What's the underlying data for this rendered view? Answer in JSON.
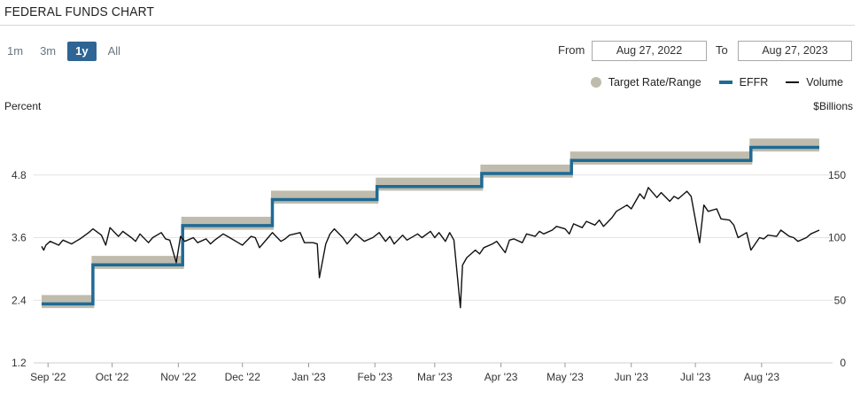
{
  "header": {
    "title": "FEDERAL FUNDS CHART"
  },
  "range_buttons": [
    {
      "label": "1m",
      "active": false
    },
    {
      "label": "3m",
      "active": false
    },
    {
      "label": "1y",
      "active": true
    },
    {
      "label": "All",
      "active": false
    }
  ],
  "date_range": {
    "from_label": "From",
    "from_value": "Aug 27, 2022",
    "to_label": "To",
    "to_value": "Aug 27, 2023"
  },
  "legend": {
    "target": "Target Rate/Range",
    "effr": "EFFR",
    "volume": "Volume",
    "colors": {
      "target": "#bfbcae",
      "effr": "#1f6a95",
      "volume": "#111111"
    }
  },
  "chart_data": {
    "type": "line",
    "title": "FEDERAL FUNDS CHART",
    "y_left_label": "Percent",
    "y_right_label": "$Billions",
    "y_left_ticks": [
      "4.8",
      "3.6",
      "2.4",
      "1.2"
    ],
    "y_left_range": [
      1.2,
      6.0
    ],
    "y_right_ticks": [
      "150",
      "100",
      "50",
      "0"
    ],
    "y_right_range": [
      0,
      200
    ],
    "x_start": "2022-08-29",
    "x_end": "2023-08-28",
    "x_ticks": [
      {
        "label": "Sep '22",
        "date": "2022-09-01"
      },
      {
        "label": "Oct '22",
        "date": "2022-10-01"
      },
      {
        "label": "Nov '22",
        "date": "2022-11-01"
      },
      {
        "label": "Dec '22",
        "date": "2022-12-01"
      },
      {
        "label": "Jan '23",
        "date": "2023-01-01"
      },
      {
        "label": "Feb '23",
        "date": "2023-02-01"
      },
      {
        "label": "Mar '23",
        "date": "2023-03-01"
      },
      {
        "label": "Apr '23",
        "date": "2023-04-01"
      },
      {
        "label": "May '23",
        "date": "2023-05-01"
      },
      {
        "label": "Jun '23",
        "date": "2023-06-01"
      },
      {
        "label": "Jul '23",
        "date": "2023-07-01"
      },
      {
        "label": "Aug '23",
        "date": "2023-08-01"
      }
    ],
    "grid": "horizontal",
    "legend_position": "top-right",
    "series": [
      {
        "name": "Target Rate/Range",
        "kind": "range",
        "points": [
          {
            "from": "2022-08-29",
            "low": 2.25,
            "high": 2.5
          },
          {
            "from": "2022-09-22",
            "low": 3.0,
            "high": 3.25
          },
          {
            "from": "2022-11-03",
            "low": 3.75,
            "high": 4.0
          },
          {
            "from": "2022-12-15",
            "low": 4.25,
            "high": 4.5
          },
          {
            "from": "2023-02-02",
            "low": 4.5,
            "high": 4.75
          },
          {
            "from": "2023-03-23",
            "low": 4.75,
            "high": 5.0
          },
          {
            "from": "2023-05-04",
            "low": 5.0,
            "high": 5.25
          },
          {
            "from": "2023-07-27",
            "low": 5.25,
            "high": 5.5
          }
        ]
      },
      {
        "name": "EFFR",
        "kind": "step",
        "points": [
          {
            "from": "2022-08-29",
            "value": 2.33
          },
          {
            "from": "2022-09-22",
            "value": 3.08
          },
          {
            "from": "2022-11-03",
            "value": 3.83
          },
          {
            "from": "2022-12-15",
            "value": 4.33
          },
          {
            "from": "2023-02-02",
            "value": 4.58
          },
          {
            "from": "2023-03-23",
            "value": 4.83
          },
          {
            "from": "2023-05-04",
            "value": 5.08
          },
          {
            "from": "2023-07-27",
            "value": 5.33
          }
        ]
      },
      {
        "name": "Volume",
        "kind": "line",
        "axis": "right",
        "points": [
          [
            "2022-08-29",
            93
          ],
          [
            "2022-08-30",
            90
          ],
          [
            "2022-08-31",
            94
          ],
          [
            "2022-09-02",
            97
          ],
          [
            "2022-09-06",
            94
          ],
          [
            "2022-09-08",
            98
          ],
          [
            "2022-09-12",
            95
          ],
          [
            "2022-09-14",
            97
          ],
          [
            "2022-09-16",
            99
          ],
          [
            "2022-09-20",
            104
          ],
          [
            "2022-09-22",
            107
          ],
          [
            "2022-09-26",
            102
          ],
          [
            "2022-09-28",
            94
          ],
          [
            "2022-09-30",
            108
          ],
          [
            "2022-10-04",
            101
          ],
          [
            "2022-10-06",
            105
          ],
          [
            "2022-10-10",
            100
          ],
          [
            "2022-10-12",
            97
          ],
          [
            "2022-10-14",
            103
          ],
          [
            "2022-10-18",
            96
          ],
          [
            "2022-10-20",
            100
          ],
          [
            "2022-10-24",
            104
          ],
          [
            "2022-10-26",
            99
          ],
          [
            "2022-10-28",
            98
          ],
          [
            "2022-10-31",
            80
          ],
          [
            "2022-11-02",
            101
          ],
          [
            "2022-11-04",
            97
          ],
          [
            "2022-11-08",
            100
          ],
          [
            "2022-11-10",
            96
          ],
          [
            "2022-11-14",
            99
          ],
          [
            "2022-11-16",
            95
          ],
          [
            "2022-11-18",
            98
          ],
          [
            "2022-11-22",
            103
          ],
          [
            "2022-11-25",
            100
          ],
          [
            "2022-11-29",
            96
          ],
          [
            "2022-12-01",
            94
          ],
          [
            "2022-12-05",
            101
          ],
          [
            "2022-12-07",
            100
          ],
          [
            "2022-12-09",
            92
          ],
          [
            "2022-12-13",
            100
          ],
          [
            "2022-12-15",
            104
          ],
          [
            "2022-12-19",
            97
          ],
          [
            "2022-12-21",
            99
          ],
          [
            "2022-12-23",
            102
          ],
          [
            "2022-12-28",
            104
          ],
          [
            "2022-12-30",
            96
          ],
          [
            "2023-01-03",
            96
          ],
          [
            "2023-01-05",
            95
          ],
          [
            "2023-01-06",
            68
          ],
          [
            "2023-01-09",
            95
          ],
          [
            "2023-01-11",
            103
          ],
          [
            "2023-01-13",
            107
          ],
          [
            "2023-01-17",
            100
          ],
          [
            "2023-01-19",
            95
          ],
          [
            "2023-01-23",
            103
          ],
          [
            "2023-01-25",
            100
          ],
          [
            "2023-01-27",
            97
          ],
          [
            "2023-01-31",
            100
          ],
          [
            "2023-02-03",
            104
          ],
          [
            "2023-02-06",
            97
          ],
          [
            "2023-02-08",
            101
          ],
          [
            "2023-02-10",
            95
          ],
          [
            "2023-02-14",
            102
          ],
          [
            "2023-02-16",
            98
          ],
          [
            "2023-02-21",
            103
          ],
          [
            "2023-02-23",
            100
          ],
          [
            "2023-02-27",
            105
          ],
          [
            "2023-03-01",
            100
          ],
          [
            "2023-03-03",
            104
          ],
          [
            "2023-03-06",
            97
          ],
          [
            "2023-03-08",
            104
          ],
          [
            "2023-03-10",
            98
          ],
          [
            "2023-03-13",
            44
          ],
          [
            "2023-03-14",
            78
          ],
          [
            "2023-03-16",
            84
          ],
          [
            "2023-03-20",
            90
          ],
          [
            "2023-03-22",
            87
          ],
          [
            "2023-03-24",
            92
          ],
          [
            "2023-03-28",
            95
          ],
          [
            "2023-03-30",
            97
          ],
          [
            "2023-04-03",
            88
          ],
          [
            "2023-04-05",
            98
          ],
          [
            "2023-04-07",
            99
          ],
          [
            "2023-04-11",
            96
          ],
          [
            "2023-04-13",
            103
          ],
          [
            "2023-04-17",
            101
          ],
          [
            "2023-04-19",
            105
          ],
          [
            "2023-04-21",
            103
          ],
          [
            "2023-04-25",
            106
          ],
          [
            "2023-04-27",
            109
          ],
          [
            "2023-05-01",
            107
          ],
          [
            "2023-05-03",
            103
          ],
          [
            "2023-05-05",
            111
          ],
          [
            "2023-05-09",
            108
          ],
          [
            "2023-05-11",
            113
          ],
          [
            "2023-05-15",
            110
          ],
          [
            "2023-05-17",
            114
          ],
          [
            "2023-05-19",
            109
          ],
          [
            "2023-05-23",
            116
          ],
          [
            "2023-05-25",
            121
          ],
          [
            "2023-05-30",
            126
          ],
          [
            "2023-06-01",
            123
          ],
          [
            "2023-06-05",
            135
          ],
          [
            "2023-06-07",
            131
          ],
          [
            "2023-06-09",
            140
          ],
          [
            "2023-06-13",
            132
          ],
          [
            "2023-06-15",
            136
          ],
          [
            "2023-06-19",
            129
          ],
          [
            "2023-06-21",
            133
          ],
          [
            "2023-06-23",
            131
          ],
          [
            "2023-06-27",
            137
          ],
          [
            "2023-06-29",
            133
          ],
          [
            "2023-07-03",
            96
          ],
          [
            "2023-07-05",
            126
          ],
          [
            "2023-07-07",
            121
          ],
          [
            "2023-07-11",
            123
          ],
          [
            "2023-07-13",
            115
          ],
          [
            "2023-07-17",
            114
          ],
          [
            "2023-07-19",
            110
          ],
          [
            "2023-07-21",
            100
          ],
          [
            "2023-07-25",
            104
          ],
          [
            "2023-07-27",
            90
          ],
          [
            "2023-07-31",
            100
          ],
          [
            "2023-08-02",
            99
          ],
          [
            "2023-08-04",
            102
          ],
          [
            "2023-08-08",
            101
          ],
          [
            "2023-08-10",
            106
          ],
          [
            "2023-08-14",
            101
          ],
          [
            "2023-08-16",
            100
          ],
          [
            "2023-08-18",
            97
          ],
          [
            "2023-08-22",
            100
          ],
          [
            "2023-08-24",
            103
          ],
          [
            "2023-08-28",
            106
          ]
        ]
      }
    ]
  }
}
